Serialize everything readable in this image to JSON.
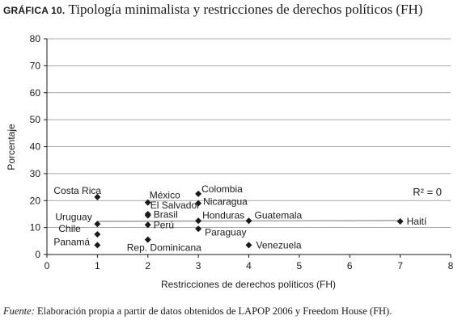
{
  "title": {
    "label": "GRÁFICA 10.",
    "text": "Tipología minimalista y restricciones de derechos políticos (FH)"
  },
  "source": {
    "label": "Fuente:",
    "text": "Elaboración propia a partir de datos obtenidos de LAPOP 2006 y Freedom House (FH)."
  },
  "annotation": "R² = 0",
  "chart_data": {
    "type": "scatter",
    "xlabel": "Restricciones de derechos políticos (FH)",
    "ylabel": "Porcentaje",
    "xlim": [
      0,
      8
    ],
    "ylim": [
      0,
      80
    ],
    "xticks": [
      "0",
      "1",
      "2",
      "3",
      "4",
      "5",
      "6",
      "7",
      "8"
    ],
    "yticks": [
      "0",
      "10",
      "20",
      "30",
      "40",
      "50",
      "60",
      "70",
      "80"
    ],
    "grid": true,
    "legend": "none",
    "points": [
      {
        "label": "Costa Rica",
        "x": 1,
        "y": 21.3
      },
      {
        "label": "Uruguay",
        "x": 1,
        "y": 11.3
      },
      {
        "label": "Chile",
        "x": 1,
        "y": 7.5
      },
      {
        "label": "Panamá",
        "x": 1,
        "y": 3.5
      },
      {
        "label": "México",
        "x": 2,
        "y": 19.3
      },
      {
        "label": "El Salvador",
        "x": 2,
        "y": 15.0
      },
      {
        "label": "Brasil",
        "x": 2,
        "y": 14.5
      },
      {
        "label": "Perú",
        "x": 2,
        "y": 11.0
      },
      {
        "label": "Rep. Dominicana",
        "x": 2,
        "y": 5.5
      },
      {
        "label": "Colombia",
        "x": 3,
        "y": 22.5
      },
      {
        "label": "Nicaragua",
        "x": 3,
        "y": 19.0
      },
      {
        "label": "Honduras",
        "x": 3,
        "y": 12.5
      },
      {
        "label": "Paraguay",
        "x": 3,
        "y": 9.5
      },
      {
        "label": "Guatemala",
        "x": 4,
        "y": 12.5
      },
      {
        "label": "Venezuela",
        "x": 4,
        "y": 3.5
      },
      {
        "label": "Haití",
        "x": 7,
        "y": 12.3
      }
    ],
    "trendline": {
      "x": [
        1,
        7
      ],
      "y": [
        12.3,
        12.6
      ]
    },
    "colors": {
      "marker": "#1a1a1a",
      "trendline": "#a6a6a6",
      "grid": "#8c8c8c"
    }
  }
}
